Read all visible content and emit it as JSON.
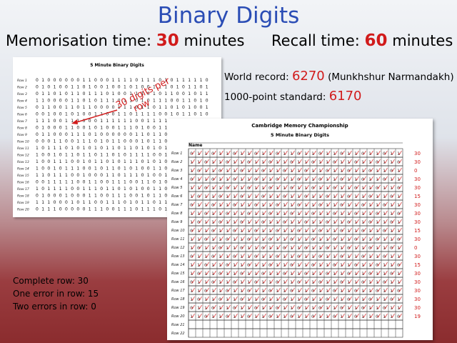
{
  "slide": {
    "title": "Binary Digits",
    "memorisation_label": "Memorisation time:",
    "memorisation_value": "30",
    "memorisation_unit": "minutes",
    "recall_label": "Recall time:",
    "recall_value": "60",
    "recall_unit": "minutes",
    "world_record_label": "World record:",
    "world_record_value": "6270",
    "world_record_holder": "(Munkhshur Narmandakh)",
    "standard_label": "1000-point standard:",
    "standard_value": "6170",
    "annotation_line1": "30 digits per",
    "annotation_line2": "row",
    "scoring": [
      "Complete row: 30",
      "One error in row: 15",
      "Two errors in row: 0"
    ]
  },
  "digit_sheet": {
    "title": "5 Minute Binary Digits",
    "rows": [
      {
        "label": "Row 1",
        "digits": "010000001100011110111010111110"
      },
      {
        "label": "Row 2",
        "digits": "010100110100100101001110101101"
      },
      {
        "label": "Row 3",
        "digits": "011010110111010011101011001011"
      },
      {
        "label": "Row 4",
        "digits": "110000110101110110101110011010"
      },
      {
        "label": "Row 5",
        "digits": "011001101100001110110110101001"
      },
      {
        "label": "Row 6",
        "digits": "001001010011001101111001011010"
      },
      {
        "label": "Row 7",
        "digits": "111001110001111110011110101001"
      },
      {
        "label": "Row 8",
        "digits": "010001100101001110100111010110"
      },
      {
        "label": "Row 9",
        "digits": "011000111010000001101101010101"
      },
      {
        "label": "Row 10",
        "digits": "000110011101011000101101101100"
      },
      {
        "label": "Row 11",
        "digits": "101110101010110110101011011010"
      },
      {
        "label": "Row 12",
        "digits": "100101101101101011110010110010"
      },
      {
        "label": "Row 13",
        "digits": "100111001011010111010101101011"
      },
      {
        "label": "Row 14",
        "digits": "100101110010110101001101101011"
      },
      {
        "label": "Row 15",
        "digits": "110111001000110111010010110001"
      },
      {
        "label": "Row 16",
        "digits": "001111100110011100110101110011"
      },
      {
        "label": "Row 17",
        "digits": "101111001110110101001101101110"
      },
      {
        "label": "Row 18",
        "digits": "010001000110011100101101110111"
      },
      {
        "label": "Row 19",
        "digits": "111000101100111010110110100111"
      },
      {
        "label": "Row 20",
        "digits": "011100000111001110111011010101"
      }
    ]
  },
  "recall_sheet": {
    "title": "Cambridge Memory Championship",
    "subtitle": "5 Minute Binary Digits",
    "name_label": "Name",
    "rows": [
      {
        "label": "Row 1",
        "score": "30"
      },
      {
        "label": "Row 2",
        "score": "30"
      },
      {
        "label": "Row 3",
        "score": "0"
      },
      {
        "label": "Row 4",
        "score": "30"
      },
      {
        "label": "Row 5",
        "score": "30"
      },
      {
        "label": "Row 6",
        "score": "15"
      },
      {
        "label": "Row 7",
        "score": "30"
      },
      {
        "label": "Row 8",
        "score": "30"
      },
      {
        "label": "Row 9",
        "score": "30"
      },
      {
        "label": "Row 10",
        "score": "15"
      },
      {
        "label": "Row 11",
        "score": "30"
      },
      {
        "label": "Row 12",
        "score": "0"
      },
      {
        "label": "Row 13",
        "score": "30"
      },
      {
        "label": "Row 14",
        "score": "15"
      },
      {
        "label": "Row 15",
        "score": "30"
      },
      {
        "label": "Row 16",
        "score": "30"
      },
      {
        "label": "Row 17",
        "score": "30"
      },
      {
        "label": "Row 18",
        "score": "30"
      },
      {
        "label": "Row 19",
        "score": "30"
      },
      {
        "label": "Row 20",
        "score": "19"
      },
      {
        "label": "Row 21",
        "score": ""
      },
      {
        "label": "Row 22",
        "score": ""
      }
    ],
    "marked_rows": 20,
    "columns": 30,
    "colors": {
      "tick": "#d11b1b",
      "score": "#d11b1b"
    }
  }
}
